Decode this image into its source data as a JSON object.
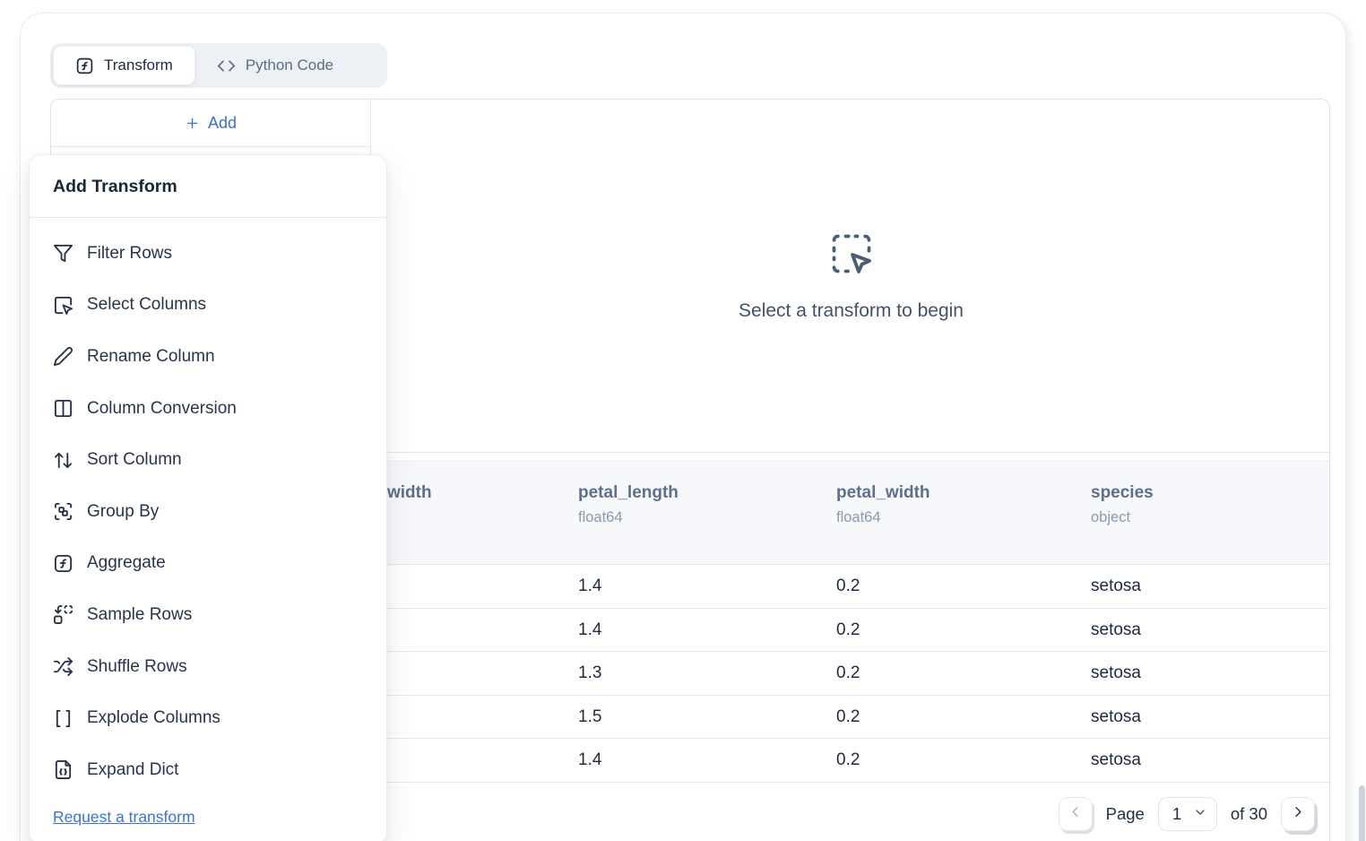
{
  "tabs": [
    {
      "label": "Transform",
      "icon": "function-square-icon",
      "active": true
    },
    {
      "label": "Python Code",
      "icon": "code-icon",
      "active": false
    }
  ],
  "sidebar": {
    "add_label": "Add"
  },
  "dropdown": {
    "title": "Add Transform",
    "items": [
      {
        "icon": "filter-icon",
        "label": "Filter Rows"
      },
      {
        "icon": "select-columns-icon",
        "label": "Select Columns"
      },
      {
        "icon": "pencil-icon",
        "label": "Rename Column"
      },
      {
        "icon": "columns-icon",
        "label": "Column Conversion"
      },
      {
        "icon": "sort-icon",
        "label": "Sort Column"
      },
      {
        "icon": "group-icon",
        "label": "Group By"
      },
      {
        "icon": "function-square-icon",
        "label": "Aggregate"
      },
      {
        "icon": "sample-icon",
        "label": "Sample Rows"
      },
      {
        "icon": "shuffle-icon",
        "label": "Shuffle Rows"
      },
      {
        "icon": "brackets-icon",
        "label": "Explode Columns"
      },
      {
        "icon": "expand-dict-icon",
        "label": "Expand Dict"
      }
    ],
    "footer_link": "Request a transform"
  },
  "empty_state": {
    "message": "Select a transform to begin",
    "icon": "dashed-pointer-icon"
  },
  "table": {
    "columns": [
      {
        "label": "width",
        "dtype": ""
      },
      {
        "label": "petal_length",
        "dtype": "float64"
      },
      {
        "label": "petal_width",
        "dtype": "float64"
      },
      {
        "label": "species",
        "dtype": "object"
      }
    ],
    "rows": [
      [
        "",
        "1.4",
        "0.2",
        "setosa"
      ],
      [
        "",
        "1.4",
        "0.2",
        "setosa"
      ],
      [
        "",
        "1.3",
        "0.2",
        "setosa"
      ],
      [
        "",
        "1.5",
        "0.2",
        "setosa"
      ],
      [
        "",
        "1.4",
        "0.2",
        "setosa"
      ]
    ]
  },
  "pagination": {
    "label": "Page",
    "page": "1",
    "of": "of 30"
  },
  "colors": {
    "accent_blue": "#3b6fd6",
    "link_blue": "#3d72d9",
    "text_dark": "#1d2940",
    "header_slate": "#5d7089",
    "dtype_muted": "#8a99ac"
  }
}
